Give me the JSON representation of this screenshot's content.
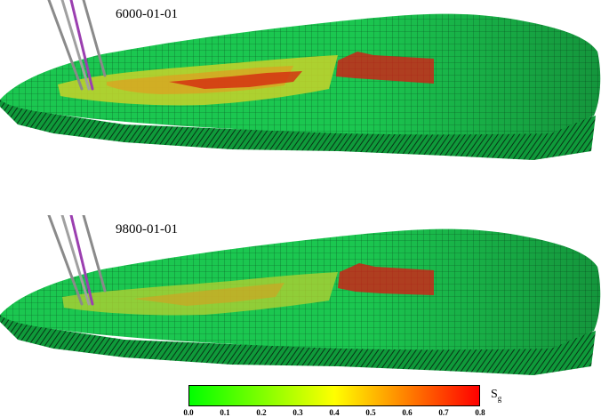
{
  "panels": [
    {
      "date": "6000-01-01"
    },
    {
      "date9800": "9800-01-01"
    }
  ],
  "top_date": "6000-01-01",
  "bottom_date": "9800-01-01",
  "colorbar": {
    "ticks": [
      "0.0",
      "0.1",
      "0.2",
      "0.3",
      "0.4",
      "0.5",
      "0.6",
      "0.7",
      "0.8"
    ],
    "label_main": "S",
    "label_sub": "g",
    "colors": [
      "#00ff00",
      "#7fff00",
      "#ffff00",
      "#ff8000",
      "#ff0000"
    ]
  },
  "colors": {
    "reservoir_green": "#16c44a",
    "grid_line": "#0b5a24",
    "gas_red": "#e01010"
  }
}
